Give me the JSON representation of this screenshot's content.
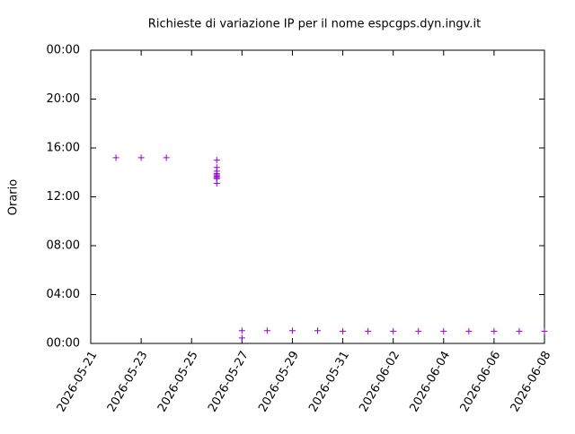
{
  "chart_data": {
    "type": "scatter",
    "title": "Richieste di variazione IP per il nome espcgps.dyn.ingv.it",
    "ylabel": "Orario",
    "series": [
      {
        "color": "#9400d3",
        "x": [
          "2026-05-22",
          "2026-05-23",
          "2026-05-24",
          "2026-05-26",
          "2026-05-26",
          "2026-05-26",
          "2026-05-26",
          "2026-05-26",
          "2026-05-26",
          "2026-05-26",
          "2026-05-26",
          "2026-05-26",
          "2026-05-26",
          "2026-05-27",
          "2026-05-27",
          "2026-05-28",
          "2026-05-29",
          "2026-05-30",
          "2026-05-31",
          "2026-06-01",
          "2026-06-02",
          "2026-06-03",
          "2026-06-04",
          "2026-06-05",
          "2026-06-06",
          "2026-06-07",
          "2026-06-08"
        ],
        "values": [
          15.2,
          15.2,
          15.2,
          15.0,
          14.4,
          14.1,
          13.9,
          13.8,
          13.7,
          13.6,
          13.5,
          13.5,
          13.1,
          1.05,
          0.45,
          1.05,
          1.05,
          1.05,
          1.0,
          1.0,
          1.0,
          1.0,
          1.0,
          1.0,
          1.0,
          1.0,
          1.0
        ]
      }
    ],
    "xlim": [
      "2026-05-21",
      "2026-06-08"
    ],
    "xticks": [
      "2026-05-21",
      "2026-05-23",
      "2026-05-25",
      "2026-05-27",
      "2026-05-29",
      "2026-05-31",
      "2026-06-02",
      "2026-06-04",
      "2026-06-06",
      "2026-06-08"
    ],
    "ylim": [
      0,
      24
    ],
    "yticks": [
      {
        "value": 0,
        "label": "00:00"
      },
      {
        "value": 4,
        "label": "04:00"
      },
      {
        "value": 8,
        "label": "08:00"
      },
      {
        "value": 12,
        "label": "12:00"
      },
      {
        "value": 16,
        "label": "16:00"
      },
      {
        "value": 20,
        "label": "20:00"
      },
      {
        "value": 24,
        "label": "00:00"
      }
    ],
    "grid": false
  }
}
